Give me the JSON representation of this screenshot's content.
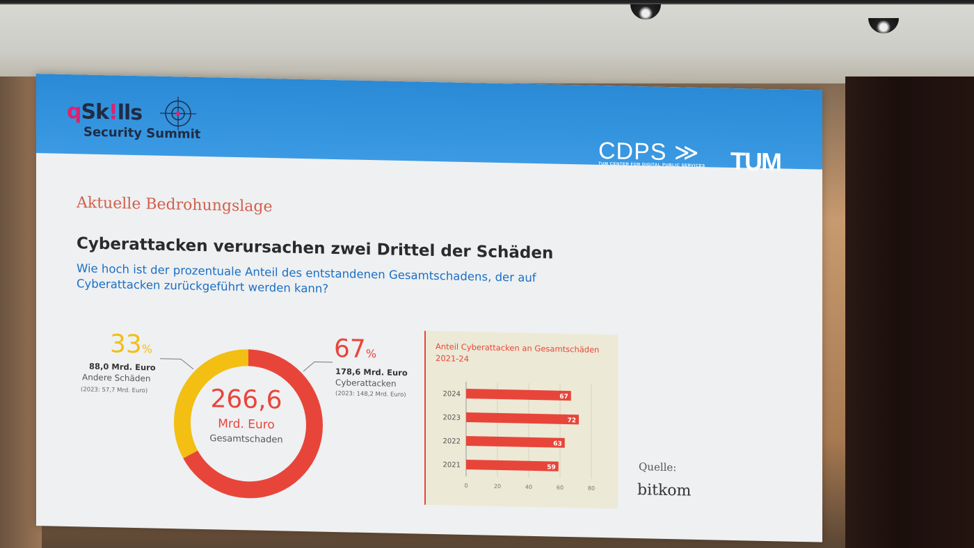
{
  "slide": {
    "brand": {
      "qskills_q": "q",
      "qskills_rest": "Sk",
      "qskills_bang": "!",
      "qskills_end": "lls",
      "summit": "Security Summit",
      "cdps": "CDPS",
      "cdps_arrows": "≫",
      "cdps_sub": "TUM CENTER FOR DIGITAL PUBLIC SERVICES",
      "tum": "TUM"
    },
    "kicker": "Aktuelle Bedrohungslage",
    "title": "Cyberattacken verursachen zwei Drittel der Schäden",
    "question": "Wie hoch ist der prozentuale Anteil des entstandenen Gesamtschadens, der auf Cyberattacken zurückgeführt werden kann?",
    "source_label": "Quelle:",
    "source_name": "bitkom"
  },
  "colors": {
    "accent_red": "#e8453a",
    "accent_yellow": "#f2bf12",
    "header_blue": "#2a8ad6",
    "question_blue": "#1a6fc4"
  },
  "chart_data": [
    {
      "type": "pie",
      "center_value": "266,6",
      "center_unit": "Mrd. Euro",
      "center_label": "Gesamtschaden",
      "slices": [
        {
          "name": "Andere Schäden",
          "percent": 33,
          "percent_label": "33",
          "percent_sign": "%",
          "amount": "88,0 Mrd. Euro",
          "previous": "(2023: 57,7 Mrd. Euro)",
          "color": "#f2bf12"
        },
        {
          "name": "Cyberattacken",
          "percent": 67,
          "percent_label": "67",
          "percent_sign": "%",
          "amount": "178,6 Mrd. Euro",
          "previous": "(2023: 148,2 Mrd. Euro)",
          "color": "#e8453a"
        }
      ]
    },
    {
      "type": "bar",
      "orientation": "horizontal",
      "title": "Anteil Cyberattacken an Gesamtschäden 2021-24",
      "categories": [
        "2024",
        "2023",
        "2022",
        "2021"
      ],
      "values": [
        67,
        72,
        63,
        59
      ],
      "xlim": [
        0,
        80
      ],
      "xticks": [
        0,
        20,
        40,
        60,
        80
      ],
      "grid": true,
      "color": "#e8453a"
    }
  ]
}
